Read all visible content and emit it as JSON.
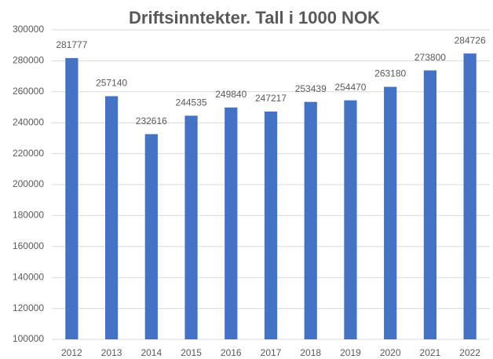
{
  "chart_data": {
    "type": "bar",
    "title": "Driftsinntekter. Tall i 1000 NOK",
    "categories": [
      "2012",
      "2013",
      "2014",
      "2015",
      "2016",
      "2017",
      "2018",
      "2019",
      "2020",
      "2021",
      "2022"
    ],
    "values": [
      281777,
      257140,
      232616,
      244535,
      249840,
      247217,
      253439,
      254470,
      263180,
      273800,
      284726
    ],
    "color": "#4472c4",
    "ylim": [
      100000,
      300000
    ],
    "yticks": [
      100000,
      120000,
      140000,
      160000,
      180000,
      200000,
      220000,
      240000,
      260000,
      280000,
      300000
    ],
    "grid": true
  }
}
